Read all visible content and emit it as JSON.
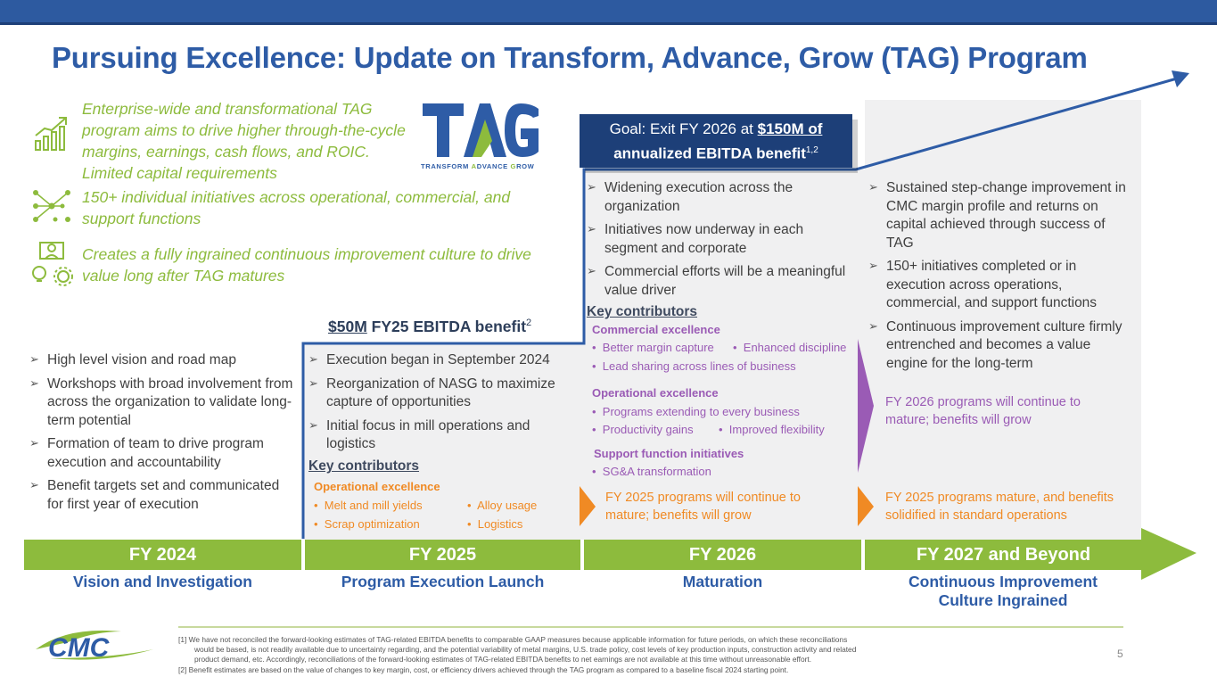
{
  "title": "Pursuing Excellence: Update on Transform, Advance, Grow (TAG) Program",
  "intro": [
    {
      "icon": "growth-chart-icon",
      "text": "Enterprise-wide and transformational TAG program aims to drive higher through-the-cycle margins, earnings, cash flows, and ROIC.  Limited capital requirements"
    },
    {
      "icon": "network-nodes-icon",
      "text": "150+ individual initiatives across operational, commercial, and support functions"
    },
    {
      "icon": "people-ideas-icon",
      "text": "Creates a fully ingrained continuous improvement culture to drive value long after TAG matures"
    }
  ],
  "logo": {
    "letters": "TAG",
    "tagline_parts": [
      "T",
      "RANSFORM ",
      "A",
      "DVANCE ",
      "G",
      "ROW"
    ],
    "company": "CMC"
  },
  "goal": {
    "prefix": "Goal: Exit FY 2026 at ",
    "amount": "$150M of",
    "rest": "annualized EBITDA benefit",
    "sup": "1,2"
  },
  "benefit_2025": {
    "amount": "$50M",
    "rest": " FY25 EBITDA benefit",
    "sup": "2"
  },
  "fy2024": {
    "bullets": [
      "High level vision and road map",
      "Workshops with broad involvement from across the organization to validate long-term potential",
      "Formation of team to drive program execution and accountability",
      "Benefit targets set and communicated for first year of execution"
    ]
  },
  "fy2025": {
    "bullets": [
      "Execution began in September 2024",
      "Reorganization of NASG to maximize capture of opportunities",
      "Initial focus in mill operations and logistics"
    ],
    "key_contributors": "Key contributors",
    "group": "Operational excellence",
    "items": [
      "Melt and mill yields",
      "Alloy usage",
      "Scrap optimization",
      "Logistics"
    ]
  },
  "fy2026": {
    "bullets": [
      "Widening execution across the organization",
      "Initiatives now underway in each segment and corporate",
      "Commercial efforts will be a meaningful value driver"
    ],
    "key_contributors": "Key contributors",
    "commercial_head": "Commercial excellence",
    "commercial_items": [
      "Better margin capture",
      "Enhanced discipline",
      "Lead sharing across lines of business"
    ],
    "operational_head": "Operational excellence",
    "operational_items": [
      "Programs extending to every business",
      "Productivity gains",
      "Improved flexibility"
    ],
    "support_head": "Support function initiatives",
    "support_items": [
      "SG&A transformation"
    ],
    "note": "FY 2025 programs will continue to mature; benefits will grow"
  },
  "fy2027": {
    "bullets": [
      "Sustained step-change improvement in CMC margin profile and returns on capital achieved through success of TAG",
      "150+ initiatives completed or in execution across operations, commercial, and support functions",
      "Continuous improvement culture firmly entrenched and becomes a value engine for the long-term"
    ],
    "note_purple": "FY 2026 programs will continue to mature; benefits will grow",
    "note_orange": "FY 2025 programs mature, and benefits solidified in standard operations"
  },
  "timeline": [
    {
      "year": "FY 2024",
      "phase": "Vision and Investigation"
    },
    {
      "year": "FY 2025",
      "phase": "Program Execution Launch"
    },
    {
      "year": "FY 2026",
      "phase": "Maturation"
    },
    {
      "year": "FY 2027 and Beyond",
      "phase": "Continuous Improvement Culture Ingrained"
    }
  ],
  "footnotes": [
    "[1] We have not reconciled the forward-looking estimates of TAG-related EBITDA benefits to comparable GAAP measures because applicable information for future periods, on which these reconciliations",
    "would be based, is not readily available due to uncertainty regarding, and the potential variability of metal margins, U.S. trade policy, cost levels of key production inputs, construction activity and related",
    "product demand, etc. Accordingly, reconciliations of the forward-looking estimates of TAG-related EBITDA benefits to net earnings are not available at this time without unreasonable effort.",
    "[2] Benefit estimates are based on the value of changes to key margin, cost, or efficiency drivers achieved through the TAG program as compared to a baseline fiscal 2024 starting point."
  ],
  "page_number": "5",
  "colors": {
    "blue": "#2e5ca6",
    "navy": "#1d3f78",
    "green": "#8dbb3d",
    "orange": "#f08a24",
    "purple": "#9a5bb5"
  }
}
